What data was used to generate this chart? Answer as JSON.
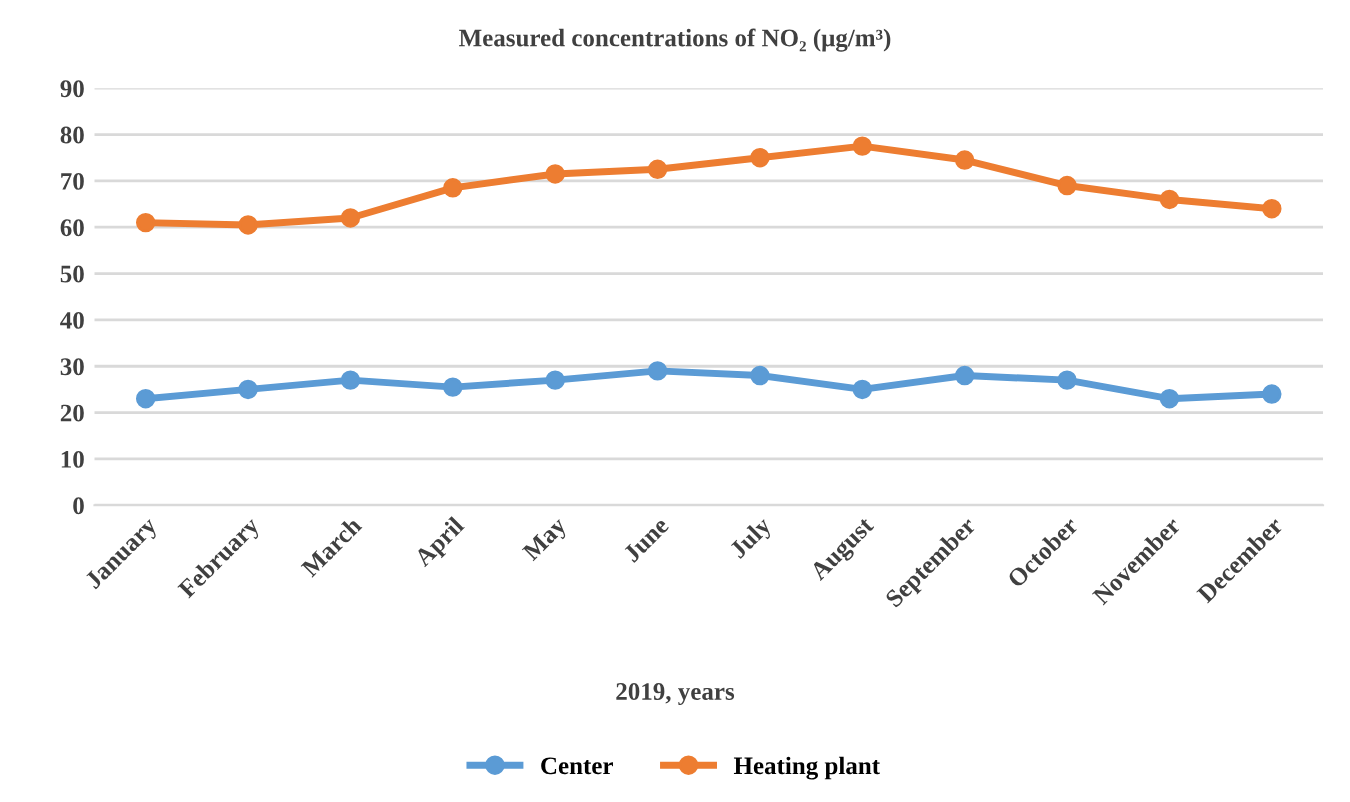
{
  "chart_data": {
    "type": "line",
    "title": "Measured concentrations of NO₂ (μg/m³)",
    "xlabel": "2019, years",
    "categories": [
      "January",
      "February",
      "March",
      "April",
      "May",
      "June",
      "July",
      "August",
      "September",
      "October",
      "November",
      "December"
    ],
    "series": [
      {
        "name": "Center",
        "color": "#5b9bd5",
        "values": [
          23,
          25,
          27,
          25.5,
          27,
          29,
          28,
          25,
          28,
          27,
          23,
          24
        ]
      },
      {
        "name": "Heating plant",
        "color": "#ed7d31",
        "values": [
          61,
          60.5,
          62,
          68.5,
          71.5,
          72.5,
          75,
          77.5,
          74.5,
          69,
          66,
          64
        ]
      }
    ],
    "ylim": [
      0,
      90
    ],
    "yticks": [
      0,
      10,
      20,
      30,
      40,
      50,
      60,
      70,
      80,
      90
    ],
    "grid": "y",
    "legend": "bottom",
    "marker": "circle",
    "line_style": "solid"
  }
}
